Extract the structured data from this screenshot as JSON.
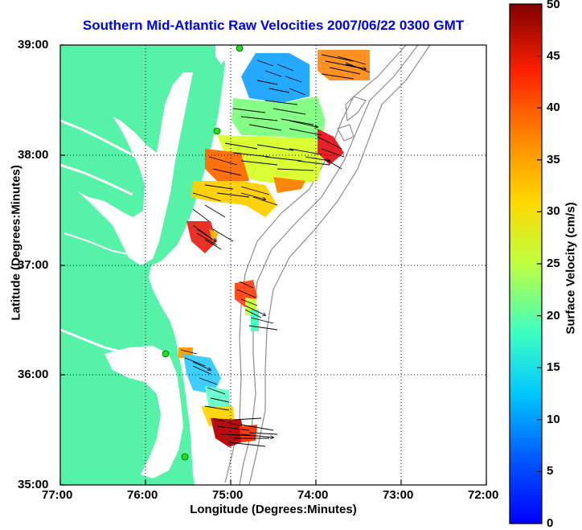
{
  "title": "Southern Mid-Atlantic Raw Velocities 2007/06/22 0300 GMT",
  "axes": {
    "xlabel": "Longitude (Degrees:Minutes)",
    "ylabel": "Latitude (Degrees:Minutes)",
    "x_ticks": [
      "77:00",
      "76:00",
      "75:00",
      "74:00",
      "73:00",
      "72:00"
    ],
    "y_ticks": [
      "39:00",
      "38:00",
      "37:00",
      "36:00",
      "35:00"
    ],
    "grid": "dotted"
  },
  "colorbar": {
    "label": "Surface Velocity (cm/s)",
    "ticks": [
      "0",
      "5",
      "10",
      "15",
      "20",
      "25",
      "30",
      "35",
      "40",
      "45",
      "50"
    ],
    "min": 0,
    "max": 50,
    "colormap": "jet"
  },
  "colors": {
    "land": "#55f2a8",
    "title": "#0000e6",
    "bathymetry": "#8c8c8c",
    "station": "#22dd22"
  }
}
